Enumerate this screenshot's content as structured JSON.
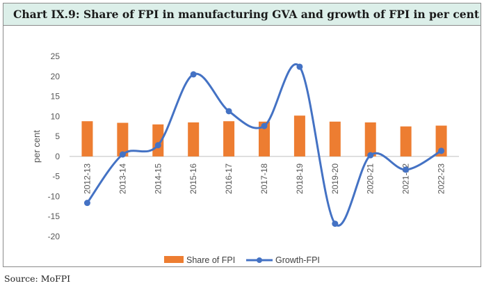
{
  "chart_data": {
    "type": "bar+line",
    "title": "Chart IX.9:  Share of FPI in manufacturing GVA and growth of FPI in per cent",
    "categories": [
      "2012-13",
      "2013-14",
      "2014-15",
      "2015-16",
      "2016-17",
      "2017-18",
      "2018-19",
      "2019-20",
      "2020-21",
      "2021-22",
      "2022-23"
    ],
    "series": [
      {
        "name": "Share of FPI",
        "kind": "bar",
        "color": "#ED7D31",
        "values": [
          8.8,
          8.4,
          8.0,
          8.5,
          8.8,
          8.7,
          10.2,
          8.7,
          8.5,
          7.5,
          7.7
        ]
      },
      {
        "name": "Growth-FPI",
        "kind": "line",
        "color": "#4472C4",
        "values": [
          -11.6,
          0.5,
          2.8,
          20.5,
          11.3,
          7.6,
          22.4,
          -16.8,
          0.3,
          -3.3,
          1.4
        ]
      }
    ],
    "ylabel": "per cent",
    "ylim": [
      -20,
      25
    ],
    "yticks": [
      25,
      20,
      15,
      10,
      5,
      0,
      -5,
      -10,
      -15,
      -20
    ],
    "legend": [
      "Share of FPI",
      "Growth-FPI"
    ],
    "legend_position": "bottom"
  },
  "source": "Source: MoFPI"
}
